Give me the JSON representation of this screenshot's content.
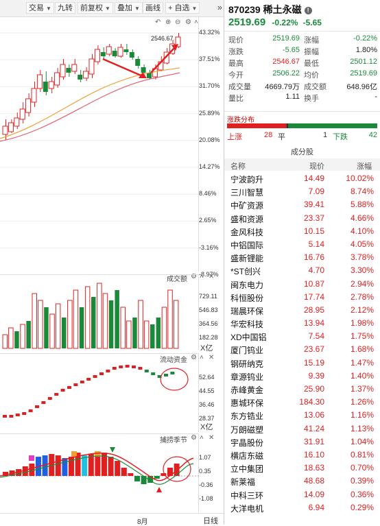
{
  "toolbar": {
    "buttons": [
      {
        "label": "交易",
        "dropdown": true
      },
      {
        "label": "九转",
        "dropdown": false
      },
      {
        "label": "前复权",
        "dropdown": true
      },
      {
        "label": "叠加",
        "dropdown": true
      },
      {
        "label": "画线",
        "dropdown": false
      },
      {
        "label": "+ 自选",
        "dropdown": true
      }
    ],
    "more_icon": "double-chevron-right-icon"
  },
  "kline": {
    "high_label": "2546.67",
    "pct_axis": [
      "43.32%",
      "37.51%",
      "31.70%",
      "25.89%",
      "20.08%",
      "14.27%",
      "8.46%",
      "2.65%",
      "-3.16%",
      "-8.97%"
    ]
  },
  "volume": {
    "title": "成交额",
    "axis": [
      "729.11",
      "546.83",
      "364.56",
      "182.28"
    ],
    "unit": "X亿"
  },
  "flow": {
    "title": "流动资金",
    "axis": [
      "52.64",
      "44.55",
      "36.46",
      "28.37"
    ],
    "unit": "X亿"
  },
  "season": {
    "title": "捕捞季节",
    "axis": [
      "1.07",
      "0.35",
      "-0.36",
      "-1.08"
    ]
  },
  "footer": {
    "month": "8月",
    "period": "日线"
  },
  "stock": {
    "code": "870239",
    "name": "稀土永磁",
    "price": "2519.69",
    "change_pct": "-0.22%",
    "change": "-5.65"
  },
  "quote_rows": [
    [
      {
        "l": "现价",
        "v": "2519.69",
        "c": "#1a8a3a"
      },
      {
        "l": "涨幅",
        "v": "-0.22%",
        "c": "#1a8a3a"
      }
    ],
    [
      {
        "l": "涨跌",
        "v": "-5.65",
        "c": "#1a8a3a"
      },
      {
        "l": "振幅",
        "v": "1.80%",
        "c": "#222"
      }
    ],
    [
      {
        "l": "最高",
        "v": "2546.67",
        "c": "#e02020"
      },
      {
        "l": "最低",
        "v": "2501.12",
        "c": "#1a8a3a"
      }
    ],
    [
      {
        "l": "今开",
        "v": "2506.22",
        "c": "#1a8a3a"
      },
      {
        "l": "均价",
        "v": "2519.69",
        "c": "#1a8a3a"
      }
    ],
    [
      {
        "l": "成交量",
        "v": "4669.79万",
        "c": "#222"
      },
      {
        "l": "成交额",
        "v": "648.96亿",
        "c": "#222"
      }
    ],
    [
      {
        "l": "量比",
        "v": "1.11",
        "c": "#222"
      },
      {
        "l": "换手",
        "v": "-",
        "c": "#222"
      }
    ]
  ],
  "distribution": {
    "title": "涨跌分布",
    "up_label": "上涨",
    "up": "28",
    "flat_label": "平",
    "flat": "1",
    "down_label": "下跌",
    "down": "42",
    "up_color": "#e02020",
    "flat_color": "#333",
    "down_color": "#1a8a3a"
  },
  "constituents": {
    "title": "成分股",
    "headers": {
      "name": "名称",
      "price": "现价",
      "change": "涨幅"
    },
    "rows": [
      {
        "name": "宁波韵升",
        "price": "14.49",
        "change": "10.02%"
      },
      {
        "name": "三川智慧",
        "price": "7.09",
        "change": "8.74%"
      },
      {
        "name": "中矿资源",
        "price": "39.41",
        "change": "5.88%"
      },
      {
        "name": "盛和资源",
        "price": "23.37",
        "change": "4.66%"
      },
      {
        "name": "金风科技",
        "price": "10.15",
        "change": "4.10%"
      },
      {
        "name": "中铝国际",
        "price": "5.14",
        "change": "4.05%"
      },
      {
        "name": "盛新锂能",
        "price": "16.76",
        "change": "3.78%"
      },
      {
        "name": "*ST创兴",
        "price": "4.70",
        "change": "3.30%"
      },
      {
        "name": "闽东电力",
        "price": "10.87",
        "change": "2.94%"
      },
      {
        "name": "科恒股份",
        "price": "17.74",
        "change": "2.78%"
      },
      {
        "name": "瑞晨环保",
        "price": "28.95",
        "change": "2.12%"
      },
      {
        "name": "华宏科技",
        "price": "13.94",
        "change": "1.98%"
      },
      {
        "name": "XD中国铝",
        "price": "7.54",
        "change": "1.75%"
      },
      {
        "name": "厦门钨业",
        "price": "23.67",
        "change": "1.68%"
      },
      {
        "name": "钢研纳克",
        "price": "15.19",
        "change": "1.47%"
      },
      {
        "name": "章源钨业",
        "price": "9.39",
        "change": "1.40%"
      },
      {
        "name": "赤峰黄金",
        "price": "25.90",
        "change": "1.37%"
      },
      {
        "name": "惠城环保",
        "price": "184.30",
        "change": "1.26%"
      },
      {
        "name": "东方锆业",
        "price": "13.06",
        "change": "1.16%"
      },
      {
        "name": "万朗磁塑",
        "price": "41.24",
        "change": "1.13%"
      },
      {
        "name": "宇晶股份",
        "price": "31.91",
        "change": "1.04%"
      },
      {
        "name": "横店东磁",
        "price": "16.10",
        "change": "0.81%"
      },
      {
        "name": "立中集团",
        "price": "18.63",
        "change": "0.70%"
      },
      {
        "name": "新莱福",
        "price": "48.68",
        "change": "0.39%"
      },
      {
        "name": "中科三环",
        "price": "14.09",
        "change": "0.36%"
      },
      {
        "name": "大洋电机",
        "price": "6.94",
        "change": "0.29%"
      }
    ]
  }
}
